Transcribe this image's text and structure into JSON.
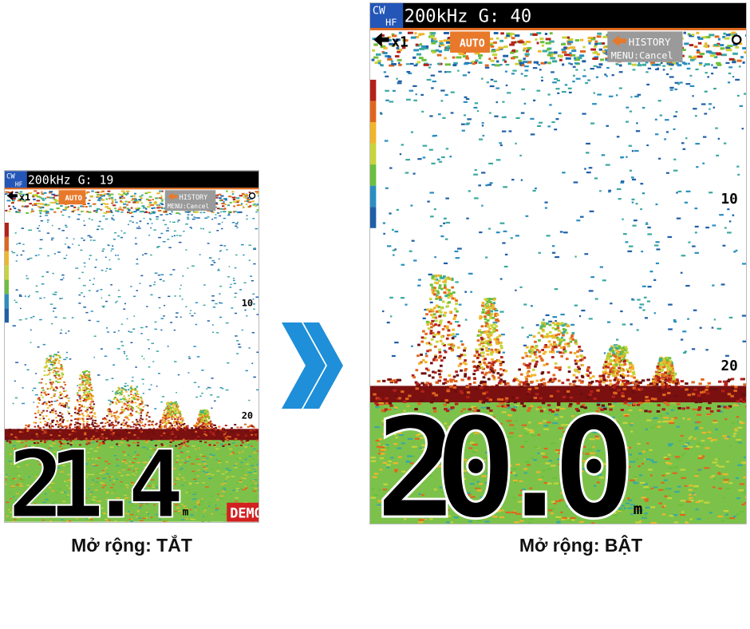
{
  "panels": [
    {
      "mode": "CW",
      "band": "HF",
      "header": "200kHz G: 19",
      "zoom": "x1",
      "gain_mode": "AUTO",
      "history": "HISTORY",
      "menu": "MENU:Cancel",
      "scale_labels": [
        "10",
        "20"
      ],
      "depth": "21.4",
      "unit": "m",
      "badge": "DEMO",
      "caption": "Mở rộng: TẮT"
    },
    {
      "mode": "CW",
      "band": "HF",
      "header": "200kHz G: 40",
      "zoom": "x1",
      "gain_mode": "AUTO",
      "history": "HISTORY",
      "menu": "MENU:Cancel",
      "scale_labels": [
        "10",
        "20"
      ],
      "depth": "20.0",
      "unit": "m",
      "caption": "Mở rộng: BẬT"
    }
  ]
}
